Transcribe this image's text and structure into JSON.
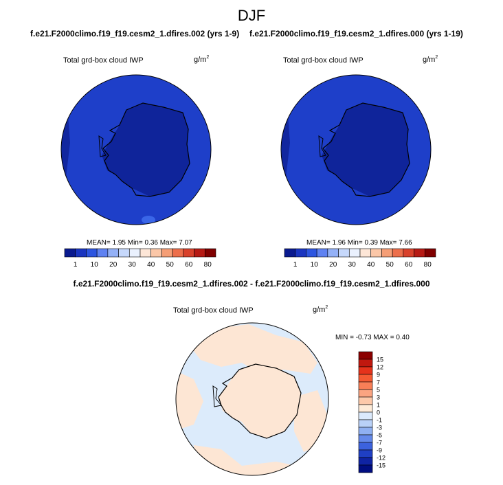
{
  "title": "DJF",
  "left_case": "f.e21.F2000climo.f19_f19.cesm2_1.dfires.002 (yrs 1-9)",
  "right_case": "f.e21.F2000climo.f19_f19.cesm2_1.dfires.000 (yrs 1-19)",
  "diff_title": "f.e21.F2000climo.f19_f19.cesm2_1.dfires.002 - f.e21.F2000climo.f19_f19.cesm2_1.dfires.000",
  "panels": [
    {
      "variable": "Total grd-box cloud IWP",
      "units_base": "g/m",
      "units_exp": "2",
      "stats": "MEAN=   1.95   Min=   0.36   Max=   7.07"
    },
    {
      "variable": "Total grd-box cloud IWP",
      "units_base": "g/m",
      "units_exp": "2",
      "stats": "MEAN=   1.96   Min=   0.39   Max=   7.66"
    },
    {
      "variable": "Total grd-box cloud IWP",
      "units_base": "g/m",
      "units_exp": "2",
      "stats": "MIN =  -0.73 MAX =   0.40"
    }
  ],
  "colorbar_main": {
    "labels": [
      "1",
      "10",
      "20",
      "30",
      "40",
      "50",
      "60",
      "80"
    ],
    "colors": [
      "#0a1a8f",
      "#1a35c0",
      "#2d55e0",
      "#5f82f2",
      "#94b1f7",
      "#c6d8fb",
      "#eaf1fe",
      "#fde6d7",
      "#fbc7a8",
      "#f59e76",
      "#ec6e4b",
      "#d8412b",
      "#b61a14",
      "#800000"
    ]
  },
  "colorbar_diff": {
    "labels": [
      "15",
      "12",
      "9",
      "7",
      "5",
      "3",
      "1",
      "0",
      "-1",
      "-3",
      "-5",
      "-7",
      "-9",
      "-12",
      "-15"
    ],
    "colors": [
      "#8b0000",
      "#c0180f",
      "#e5321b",
      "#f45a33",
      "#f87f57",
      "#fba481",
      "#fdc9aa",
      "#feebd8",
      "#dceafc",
      "#b9d1f8",
      "#8fb0f2",
      "#6489ea",
      "#3c62dd",
      "#1f3fc4",
      "#0f23a3",
      "#000d80"
    ]
  },
  "map_colors": {
    "ocean_main": "#1e3fc9",
    "continent_main": "#0f249a",
    "edge_pale": "#2a52dd",
    "diff_bg": "#dcebfb",
    "diff_patch": "#fde6d4"
  }
}
